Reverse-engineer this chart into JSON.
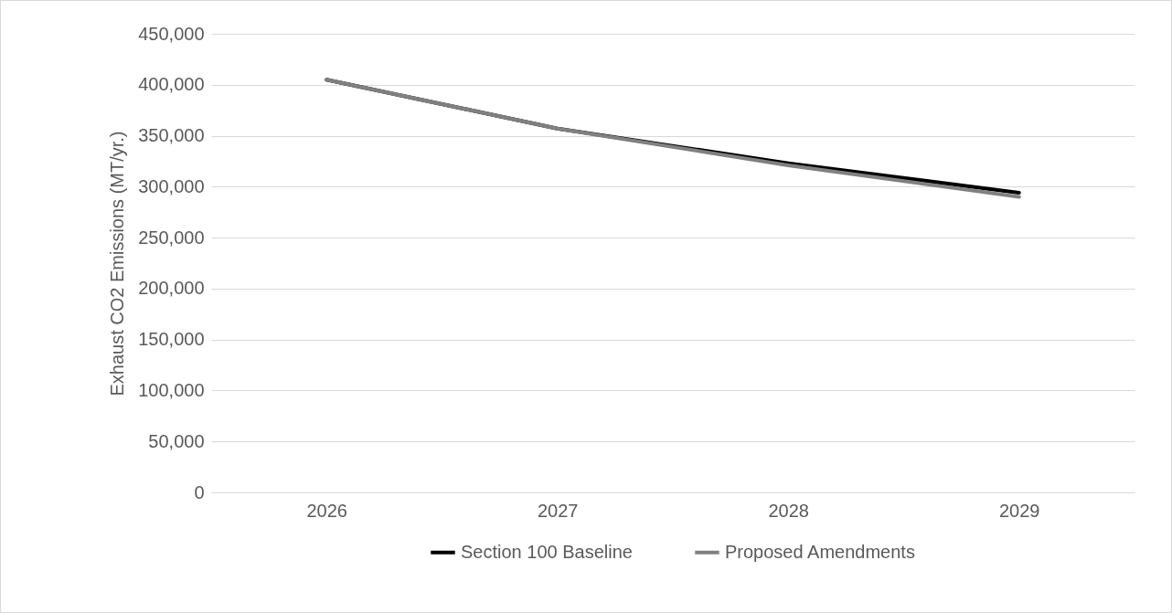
{
  "chart_data": {
    "type": "line",
    "ylabel": "Exhaust CO2 Emissions (MT/yr.)",
    "categories": [
      "2026",
      "2027",
      "2028",
      "2029"
    ],
    "series": [
      {
        "name": "Section 100 Baseline",
        "color": "#000000",
        "values": [
          405000,
          357000,
          323000,
          294000
        ]
      },
      {
        "name": "Proposed Amendments",
        "color": "#808080",
        "values": [
          405000,
          357000,
          321000,
          290000
        ]
      }
    ],
    "ylim": [
      0,
      450000
    ],
    "yticks": [
      0,
      {
        "value": 50000,
        "label": "50,000"
      },
      {
        "value": 100000,
        "label": "100,000"
      },
      {
        "value": 150000,
        "label": "150,000"
      },
      {
        "value": 200000,
        "label": "200,000"
      },
      {
        "value": 250000,
        "label": "250,000"
      },
      {
        "value": 300000,
        "label": "300,000"
      },
      {
        "value": 350000,
        "label": "350,000"
      },
      {
        "value": 400000,
        "label": "400,000"
      },
      {
        "value": 450000,
        "label": "450,000"
      }
    ],
    "grid": "y",
    "legend": "bottom",
    "marker": "none",
    "line_style": "solid"
  }
}
